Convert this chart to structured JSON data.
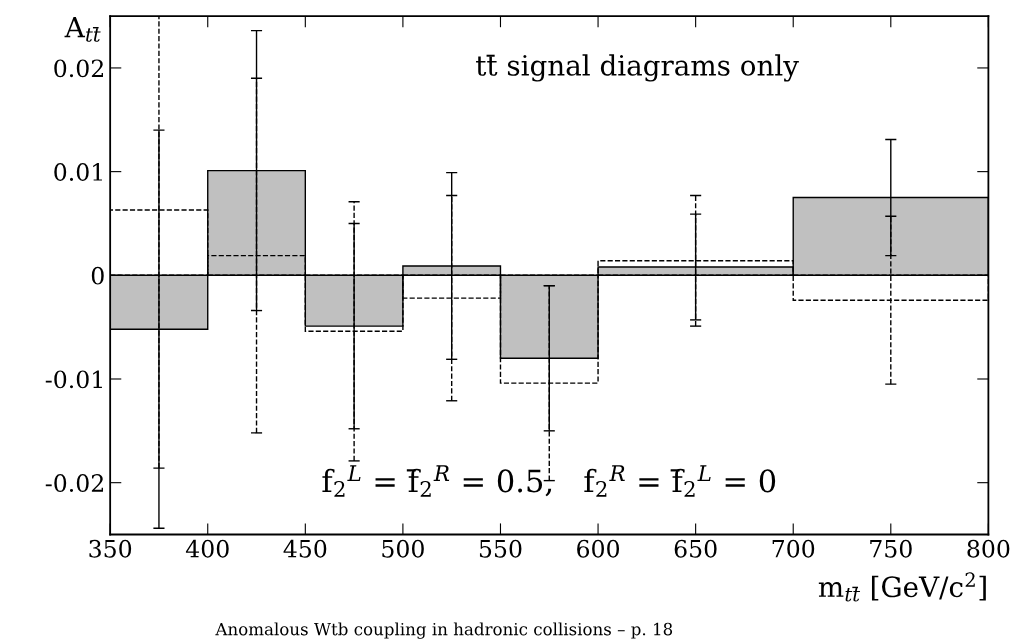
{
  "chart_data": {
    "type": "histogram",
    "xlabel": "m$_{tt̄}$ [GeV/c$^{2}$]",
    "ylabel": "A$_{tt̄}$",
    "bins": [
      350,
      400,
      450,
      500,
      550,
      600,
      700,
      800
    ],
    "series": [
      {
        "color": "#c0c0c0",
        "line_style": "solid",
        "values": [
          -0.0052,
          0.0101,
          -0.0049,
          0.0009,
          -0.008,
          0.0008,
          0.0075
        ],
        "errors": [
          0.0192,
          0.0135,
          0.0099,
          0.009,
          0.007,
          0.0051,
          0.0056
        ]
      },
      {
        "color": "#000000",
        "line_style": "dashed",
        "values": [
          0.0063,
          0.0019,
          -0.0054,
          -0.0022,
          -0.0104,
          0.0014,
          -0.0024
        ],
        "errors": [
          [
            -0.0186,
            0.025
          ],
          0.0171,
          0.0125,
          0.0099,
          0.0094,
          0.0063,
          0.0081
        ]
      }
    ],
    "xlim": [
      350,
      800
    ],
    "xticks": [
      350,
      400,
      450,
      500,
      550,
      600,
      650,
      700,
      750,
      800
    ],
    "ylim": [
      -0.025,
      0.025
    ],
    "yticks": [
      -0.02,
      -0.01,
      0,
      0.01,
      0.02
    ],
    "grid": false,
    "legend": false,
    "annotations": [
      "tt̄ signal diagrams only",
      "f$_{2}$$^{L}$ = f̄$_{2}$$^{R}$ = 0.5,   f$_{2}$$^{R}$ = f̄$_{2}$$^{L}$ = 0",
      "Anomalous Wtb coupling in hadronic collisions – p. 18"
    ]
  }
}
